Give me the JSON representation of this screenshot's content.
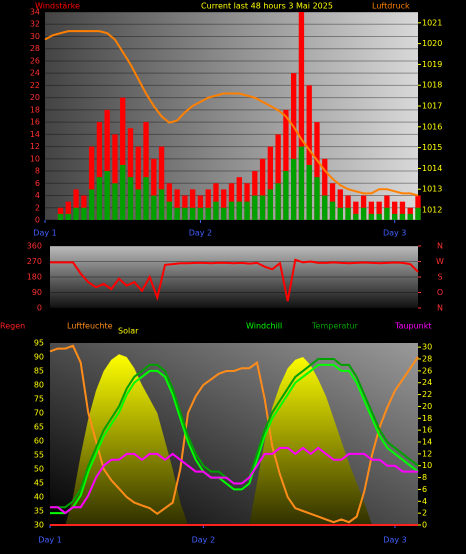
{
  "chart_data": [
    {
      "type": "bar",
      "title": "Current last 48 hours 3 Mai 2025",
      "x": [
        0,
        1,
        2,
        3,
        4,
        5,
        6,
        7,
        8,
        9,
        10,
        11,
        12,
        13,
        14,
        15,
        16,
        17,
        18,
        19,
        20,
        21,
        22,
        23,
        24,
        25,
        26,
        27,
        28,
        29,
        30,
        31,
        32,
        33,
        34,
        35,
        36,
        37,
        38,
        39,
        40,
        41,
        42,
        43,
        44,
        45,
        46,
        47,
        48
      ],
      "xlim": [
        0,
        48
      ],
      "xticks": [
        {
          "value": 0,
          "label": "Day 1"
        },
        {
          "value": 20,
          "label": "Day 2"
        },
        {
          "value": 45,
          "label": "Day 3"
        }
      ],
      "ylim": [
        0,
        34
      ],
      "yticks": [
        0,
        2,
        4,
        6,
        8,
        10,
        12,
        14,
        16,
        18,
        20,
        22,
        24,
        26,
        28,
        30,
        32,
        34
      ],
      "y2lim": [
        1011.52,
        1021.52
      ],
      "y2ticks": [
        1012,
        1013,
        1014,
        1015,
        1016,
        1017,
        1018,
        1019,
        1020,
        1021
      ],
      "grid": true,
      "series": [
        {
          "name": "Windstärke",
          "type": "bar",
          "color": "#ff0000",
          "values": [
            0,
            0,
            2,
            3,
            5,
            4,
            12,
            16,
            18,
            14,
            20,
            15,
            12,
            16,
            10,
            12,
            6,
            5,
            4,
            5,
            4,
            5,
            6,
            5,
            6,
            7,
            6,
            8,
            10,
            12,
            14,
            18,
            24,
            34,
            22,
            16,
            10,
            6,
            5,
            4,
            3,
            4,
            3,
            3,
            4,
            3,
            3,
            2,
            4
          ]
        },
        {
          "type": "bar",
          "color": "#00a000",
          "values": [
            0,
            0,
            1,
            1,
            2,
            2,
            5,
            7,
            8,
            6,
            9,
            7,
            5,
            7,
            4,
            5,
            3,
            2,
            2,
            2,
            2,
            2,
            3,
            2,
            3,
            3,
            3,
            4,
            4,
            5,
            6,
            8,
            10,
            12,
            9,
            7,
            4,
            3,
            2,
            2,
            1,
            2,
            1,
            1,
            2,
            1,
            1,
            1,
            2
          ]
        },
        {
          "name": "Luftdruck",
          "type": "line",
          "axis": "y2",
          "color": "#ff8000",
          "values": [
            1020.2,
            1020.4,
            1020.5,
            1020.6,
            1020.6,
            1020.6,
            1020.6,
            1020.6,
            1020.5,
            1020.2,
            1019.6,
            1019.0,
            1018.3,
            1017.6,
            1017.0,
            1016.5,
            1016.2,
            1016.3,
            1016.7,
            1017.0,
            1017.2,
            1017.4,
            1017.5,
            1017.6,
            1017.6,
            1017.6,
            1017.5,
            1017.4,
            1017.2,
            1017.0,
            1016.8,
            1016.5,
            1016.0,
            1015.4,
            1014.9,
            1014.4,
            1013.9,
            1013.5,
            1013.2,
            1013.0,
            1012.9,
            1012.8,
            1012.8,
            1013.0,
            1013.0,
            1012.9,
            1012.8,
            1012.8,
            1012.7
          ]
        }
      ]
    },
    {
      "type": "line",
      "x": [
        0,
        1,
        2,
        3,
        4,
        5,
        6,
        7,
        8,
        9,
        10,
        11,
        12,
        13,
        14,
        15,
        16,
        17,
        18,
        19,
        20,
        21,
        22,
        23,
        24,
        25,
        26,
        27,
        28,
        29,
        30,
        31,
        32,
        33,
        34,
        35,
        36,
        37,
        38,
        39,
        40,
        41,
        42,
        43,
        44,
        45,
        46,
        47,
        48
      ],
      "xlim": [
        0,
        48
      ],
      "ylim": [
        0,
        360
      ],
      "yticks": [
        0,
        90,
        180,
        270,
        360
      ],
      "y2lim": [
        0,
        360
      ],
      "y2ticks": [
        {
          "value": 0,
          "label": "N"
        },
        {
          "value": 90,
          "label": "O"
        },
        {
          "value": 180,
          "label": "S"
        },
        {
          "value": 270,
          "label": "W"
        },
        {
          "value": 360,
          "label": "N"
        }
      ],
      "grid": true,
      "series": [
        {
          "type": "line",
          "color": "#ff0000",
          "values": [
            265,
            265,
            265,
            265,
            200,
            150,
            120,
            140,
            110,
            170,
            130,
            150,
            100,
            180,
            60,
            250,
            255,
            260,
            260,
            262,
            262,
            260,
            263,
            262,
            260,
            262,
            258,
            262,
            240,
            225,
            260,
            40,
            280,
            265,
            270,
            262,
            262,
            265,
            262,
            260,
            262,
            264,
            262,
            260,
            262,
            264,
            262,
            255,
            210
          ]
        }
      ]
    },
    {
      "type": "area",
      "x": [
        0,
        1,
        2,
        3,
        4,
        5,
        6,
        7,
        8,
        9,
        10,
        11,
        12,
        13,
        14,
        15,
        16,
        17,
        18,
        19,
        20,
        21,
        22,
        23,
        24,
        25,
        26,
        27,
        28,
        29,
        30,
        31,
        32,
        33,
        34,
        35,
        36,
        37,
        38,
        39,
        40,
        41,
        42,
        43,
        44,
        45,
        46,
        47,
        48
      ],
      "xlim": [
        0,
        48
      ],
      "xticks": [
        {
          "value": 0,
          "label": "Day 1"
        },
        {
          "value": 20,
          "label": "Day 2"
        },
        {
          "value": 45,
          "label": "Day 3"
        }
      ],
      "ylim": [
        30,
        95
      ],
      "yticks": [
        30,
        35,
        40,
        45,
        50,
        55,
        60,
        65,
        70,
        75,
        80,
        85,
        90,
        95
      ],
      "y2lim": [
        0,
        30.7
      ],
      "y2ticks": [
        0,
        2,
        4,
        6,
        8,
        10,
        12,
        14,
        16,
        18,
        20,
        22,
        24,
        26,
        28,
        30
      ],
      "grid": false,
      "series": [
        {
          "name": "Regen",
          "type": "line",
          "axis": "y2",
          "color": "#ff2020",
          "values": [
            0,
            0,
            0,
            0,
            0,
            0,
            0,
            0,
            0,
            0,
            0,
            0,
            0,
            0,
            0,
            0,
            0,
            0,
            0,
            0,
            0,
            0,
            0,
            0,
            0,
            0,
            0,
            0,
            0,
            0,
            0,
            0,
            0,
            0,
            0,
            0,
            0,
            0,
            0,
            0,
            0,
            0,
            0,
            0,
            0,
            0,
            0,
            0,
            0
          ]
        },
        {
          "name": "Luftfeuchte",
          "type": "line",
          "color": "#ff8c1a",
          "values": [
            92,
            93,
            93,
            94,
            88,
            70,
            60,
            50,
            46,
            43,
            40,
            38,
            37,
            36,
            34,
            36,
            38,
            50,
            70,
            76,
            80,
            82,
            84,
            85,
            85,
            86,
            86,
            88,
            75,
            58,
            48,
            40,
            36,
            35,
            34,
            33,
            32,
            31,
            32,
            31,
            33,
            42,
            55,
            65,
            72,
            78,
            82,
            86,
            90
          ]
        },
        {
          "name": "Solar",
          "type": "area",
          "color": "#ffff00",
          "values": [
            30,
            30,
            30,
            40,
            55,
            68,
            78,
            85,
            89,
            91,
            90,
            86,
            80,
            75,
            70,
            60,
            50,
            38,
            30,
            30,
            30,
            30,
            30,
            30,
            30,
            30,
            30,
            45,
            60,
            72,
            80,
            86,
            89,
            90,
            87,
            82,
            76,
            68,
            60,
            52,
            45,
            38,
            30,
            30,
            30,
            30,
            30,
            30,
            30
          ]
        },
        {
          "name": "Windchill",
          "type": "line",
          "axis": "y2",
          "color": "#00ff00",
          "values": [
            2,
            2,
            2,
            3,
            5,
            9,
            12,
            15,
            17,
            19,
            22,
            24,
            25,
            26,
            26,
            25,
            22,
            18,
            14,
            11,
            9,
            8,
            8,
            7,
            6,
            6,
            7,
            11,
            15,
            18,
            20,
            22,
            24,
            25,
            26,
            27,
            27,
            27,
            26,
            26,
            24,
            21,
            18,
            15,
            13,
            12,
            11,
            10,
            9
          ]
        },
        {
          "name": "Temperatur",
          "type": "line",
          "axis": "y2",
          "color": "#00a000",
          "values": [
            3,
            3,
            3,
            4,
            6,
            10,
            13,
            16,
            18,
            20,
            23,
            25,
            26,
            27,
            27,
            26,
            23,
            19,
            15,
            12,
            10,
            9,
            9,
            8,
            7,
            7,
            8,
            12,
            16,
            19,
            21,
            23,
            25,
            26,
            27,
            28,
            28,
            28,
            27,
            27,
            25,
            22,
            19,
            16,
            14,
            13,
            12,
            11,
            10
          ]
        },
        {
          "name": "Taupunkt",
          "type": "line",
          "axis": "y2",
          "color": "#ff00ff",
          "values": [
            3,
            3,
            2,
            3,
            3,
            5,
            8,
            10,
            11,
            11,
            12,
            12,
            11,
            12,
            12,
            11,
            12,
            11,
            10,
            9,
            9,
            8,
            8,
            8,
            7,
            7,
            8,
            10,
            12,
            12,
            13,
            13,
            12,
            13,
            12,
            13,
            12,
            11,
            11,
            12,
            12,
            12,
            11,
            11,
            10,
            10,
            9,
            9,
            9
          ]
        }
      ]
    }
  ]
}
